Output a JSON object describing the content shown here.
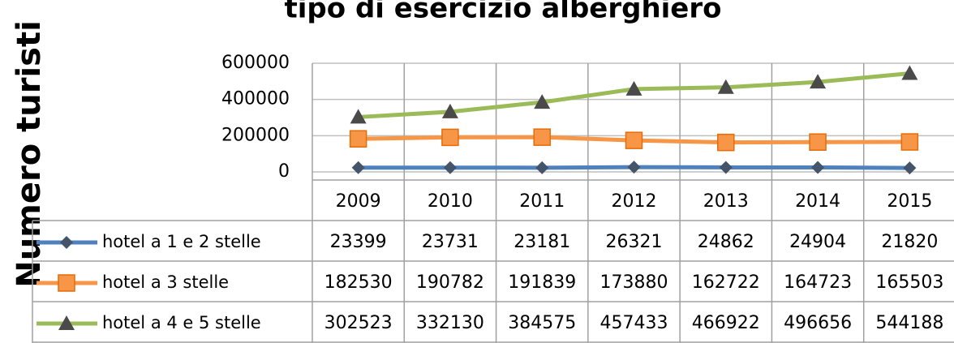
{
  "chart_data": {
    "type": "line",
    "title": "tipo di esercizio alberghiero",
    "y_label": "Numero turisti",
    "categories": [
      "2009",
      "2010",
      "2011",
      "2012",
      "2013",
      "2014",
      "2015"
    ],
    "series": [
      {
        "name": "hotel a 1 e 2 stelle",
        "color": "#4f81bd",
        "marker": "diamond",
        "values": [
          23399,
          23731,
          23181,
          26321,
          24862,
          24904,
          21820
        ]
      },
      {
        "name": "hotel a 3 stelle",
        "color": "#f79646",
        "marker": "square",
        "values": [
          182530,
          190782,
          191839,
          173880,
          162722,
          164723,
          165503
        ]
      },
      {
        "name": "hotel a 4 e 5 stelle",
        "color": "#9bbb59",
        "marker": "triangle",
        "values": [
          302523,
          332130,
          384575,
          457433,
          466922,
          496656,
          544188
        ]
      }
    ],
    "ylim": [
      0,
      600000
    ],
    "yticks": [
      0,
      200000,
      400000,
      600000
    ],
    "grid": true,
    "data_table": true
  }
}
